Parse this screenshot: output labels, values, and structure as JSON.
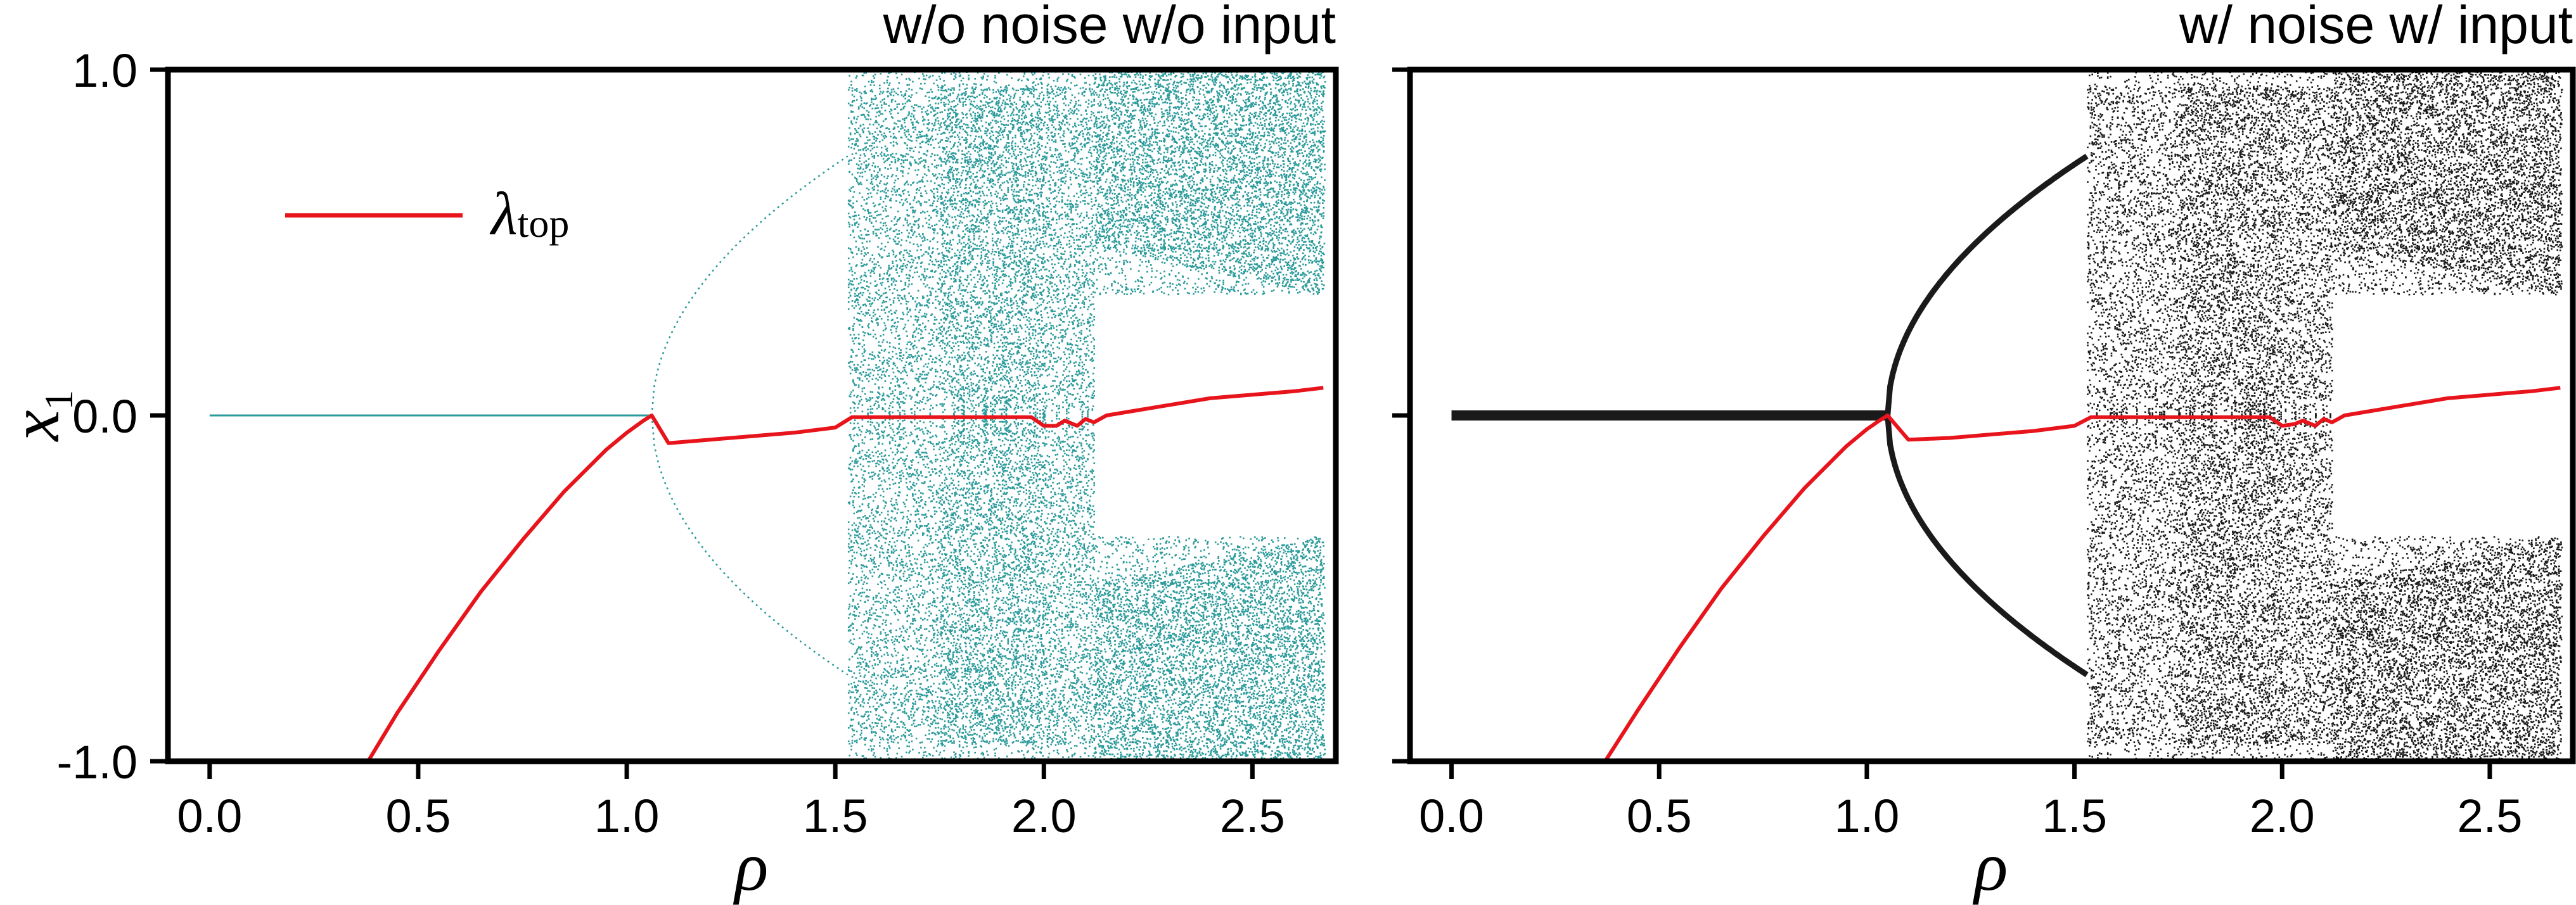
{
  "figure": {
    "background": "#ffffff",
    "axis_color": "#000000"
  },
  "chart_data": [
    {
      "type": "scatter",
      "title": "w/o noise w/o input",
      "xlabel": "ρ",
      "ylabel_symbol": "x",
      "ylabel_subscript": "1",
      "xlim": [
        -0.1,
        2.7
      ],
      "ylim": [
        -1.0,
        1.0
      ],
      "xticks": [
        "0.0",
        "0.5",
        "1.0",
        "1.5",
        "2.0",
        "2.5"
      ],
      "yticks": [
        "1.0",
        "0.0",
        "-1.0"
      ],
      "grid": false,
      "legend": {
        "placement": "upper-left",
        "symbol": "λ",
        "subscript": "top"
      },
      "series": [
        {
          "role": "bifurcation",
          "color": "#2a9a9a",
          "fixed_point": {
            "x_range": [
              0.0,
              1.06
            ],
            "y": 0.0
          },
          "pitchfork_at": 1.06,
          "period2_branch": {
            "x_range": [
              1.06,
              1.53
            ],
            "y_end": 0.75
          },
          "period_doubling_region": [
            1.53,
            2.0
          ],
          "window_region": [
            2.0,
            2.12
          ],
          "chaotic_region": [
            2.12,
            2.67
          ]
        },
        {
          "role": "lyapunov",
          "color": "#e8141c",
          "x": [
            0.38,
            0.45,
            0.55,
            0.65,
            0.75,
            0.85,
            0.95,
            1.0,
            1.04,
            1.06,
            1.1,
            1.2,
            1.3,
            1.4,
            1.5,
            1.54,
            1.6,
            1.7,
            1.8,
            1.9,
            1.97,
            2.0,
            2.03,
            2.05,
            2.08,
            2.1,
            2.12,
            2.15,
            2.2,
            2.3,
            2.4,
            2.5,
            2.6,
            2.67
          ],
          "y": [
            -1.0,
            -0.86,
            -0.68,
            -0.51,
            -0.36,
            -0.22,
            -0.1,
            -0.05,
            -0.015,
            0.0,
            -0.08,
            -0.07,
            -0.06,
            -0.05,
            -0.035,
            -0.005,
            -0.005,
            -0.005,
            -0.005,
            -0.005,
            -0.005,
            -0.03,
            -0.03,
            -0.015,
            -0.03,
            -0.01,
            -0.02,
            0.0,
            0.01,
            0.03,
            0.05,
            0.06,
            0.07,
            0.08
          ]
        }
      ]
    },
    {
      "type": "scatter",
      "title": "w/ noise w/ input",
      "xlabel": "ρ",
      "xlim": [
        -0.1,
        2.7
      ],
      "ylim": [
        -1.0,
        1.0
      ],
      "xticks": [
        "0.0",
        "0.5",
        "1.0",
        "1.5",
        "2.0",
        "2.5"
      ],
      "grid": false,
      "series": [
        {
          "role": "bifurcation",
          "color": "#1a1a1a",
          "fixed_point": {
            "x_range": [
              0.0,
              1.05
            ],
            "y": 0.0
          },
          "pitchfork_at": 1.05,
          "period2_branch": {
            "x_range": [
              1.05,
              1.53
            ],
            "y_end": 0.75
          },
          "period_doubling_region": [
            1.53,
            2.0
          ],
          "window_region": [
            2.0,
            2.12
          ],
          "chaotic_region": [
            2.12,
            2.67
          ]
        },
        {
          "role": "lyapunov",
          "color": "#e8141c",
          "x": [
            0.37,
            0.45,
            0.55,
            0.65,
            0.75,
            0.85,
            0.95,
            1.0,
            1.03,
            1.05,
            1.1,
            1.2,
            1.3,
            1.4,
            1.5,
            1.54,
            1.6,
            1.7,
            1.8,
            1.9,
            1.97,
            2.0,
            2.03,
            2.05,
            2.08,
            2.1,
            2.12,
            2.15,
            2.2,
            2.3,
            2.4,
            2.5,
            2.6,
            2.67
          ],
          "y": [
            -1.0,
            -0.85,
            -0.67,
            -0.5,
            -0.35,
            -0.21,
            -0.09,
            -0.04,
            -0.015,
            0.0,
            -0.07,
            -0.065,
            -0.055,
            -0.045,
            -0.03,
            -0.005,
            -0.005,
            -0.005,
            -0.005,
            -0.005,
            -0.005,
            -0.03,
            -0.025,
            -0.015,
            -0.03,
            -0.01,
            -0.02,
            0.0,
            0.01,
            0.03,
            0.05,
            0.06,
            0.07,
            0.08
          ]
        }
      ]
    }
  ]
}
